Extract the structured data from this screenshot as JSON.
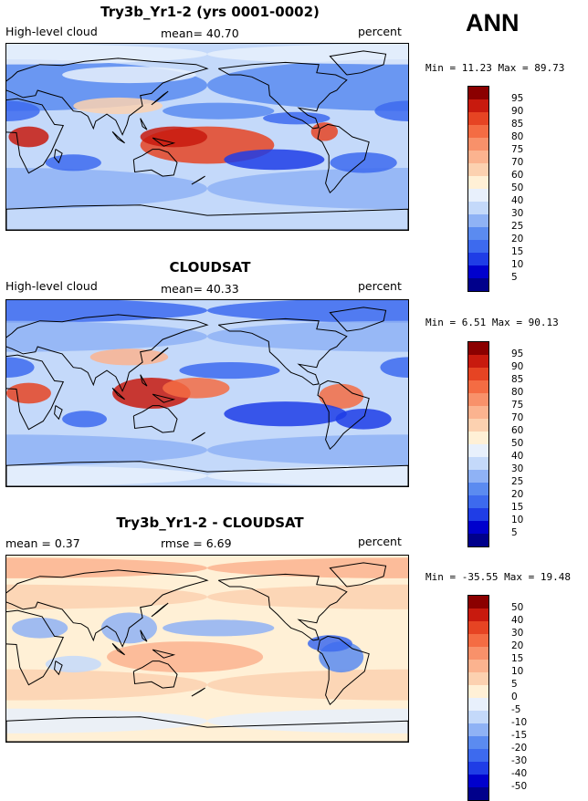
{
  "season": "ANN",
  "colors": {
    "abs_scale": [
      "#00008b",
      "#0000cd",
      "#1f3de6",
      "#3d6aee",
      "#5b8bf0",
      "#8fb2f5",
      "#c4d9fa",
      "#e8f0fc",
      "#fff0d6",
      "#fcd1b0",
      "#fbb38f",
      "#f8916a",
      "#f46c43",
      "#e64423",
      "#c81a0e",
      "#8b0000"
    ],
    "diff_scale": [
      "#00008b",
      "#0000cd",
      "#1f3de6",
      "#3d6aee",
      "#5b8bf0",
      "#8fb2f5",
      "#c4d9fa",
      "#e8f0fc",
      "#fff0d6",
      "#fcd1b0",
      "#fbb38f",
      "#f8916a",
      "#f46c43",
      "#e64423",
      "#c81a0e",
      "#8b0000"
    ]
  },
  "chart_data": [
    {
      "type": "heatmap",
      "title": "Try3b_Yr1-2 (yrs 0001-0002)",
      "left_label": "High-level cloud",
      "stat_label": "mean=  40.70",
      "units": "percent",
      "min_max": "Min =  11.23 Max =  89.73",
      "colorbar_levels": [
        "95",
        "90",
        "85",
        "80",
        "75",
        "70",
        "60",
        "50",
        "40",
        "30",
        "25",
        "20",
        "15",
        "10",
        "5"
      ]
    },
    {
      "type": "heatmap",
      "title": "CLOUDSAT",
      "left_label": "High-level cloud",
      "stat_label": "mean=  40.33",
      "units": "percent",
      "min_max": "Min =   6.51 Max =  90.13",
      "colorbar_levels": [
        "95",
        "90",
        "85",
        "80",
        "75",
        "70",
        "60",
        "50",
        "40",
        "30",
        "25",
        "20",
        "15",
        "10",
        "5"
      ]
    },
    {
      "type": "heatmap",
      "title": "Try3b_Yr1-2 - CLOUDSAT",
      "left_label": "mean =   0.37",
      "stat_label": "rmse =   6.69",
      "units": "percent",
      "min_max": "Min = -35.55 Max =  19.48",
      "colorbar_levels": [
        "50",
        "40",
        "30",
        "20",
        "15",
        "10",
        "5",
        "0",
        "-5",
        "-10",
        "-15",
        "-20",
        "-30",
        "-40",
        "-50"
      ]
    }
  ]
}
